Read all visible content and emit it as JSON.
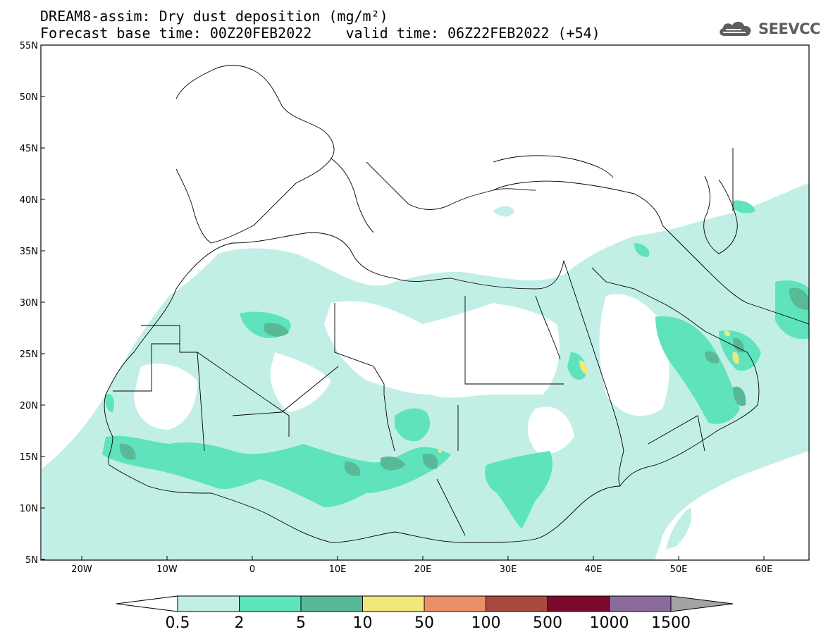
{
  "header": {
    "title_line1": "DREAM8-assim: Dry dust deposition (mg/m²)",
    "title_line2": "Forecast base time: 00Z20FEB2022    valid time: 06Z22FEB2022 (+54)",
    "logo_text": "SEEVCCC",
    "logo_icon": "cloud-icon"
  },
  "axes": {
    "lat_labels": [
      "55N",
      "50N",
      "45N",
      "40N",
      "35N",
      "30N",
      "25N",
      "20N",
      "15N",
      "10N",
      "5N"
    ],
    "lon_labels": [
      "20W",
      "10W",
      "0",
      "10E",
      "20E",
      "30E",
      "40E",
      "50E",
      "60E"
    ]
  },
  "colorbar": {
    "labels": [
      "0.5",
      "2",
      "5",
      "10",
      "50",
      "100",
      "500",
      "1000",
      "1500"
    ],
    "colors": [
      "#c1efe6",
      "#5fe3bd",
      "#57b996",
      "#f2e77b",
      "#ea8f69",
      "#a94a40",
      "#7d0a2d",
      "#8a6b9c",
      "#a3a3a3"
    ],
    "under_color": "#ffffff"
  }
}
